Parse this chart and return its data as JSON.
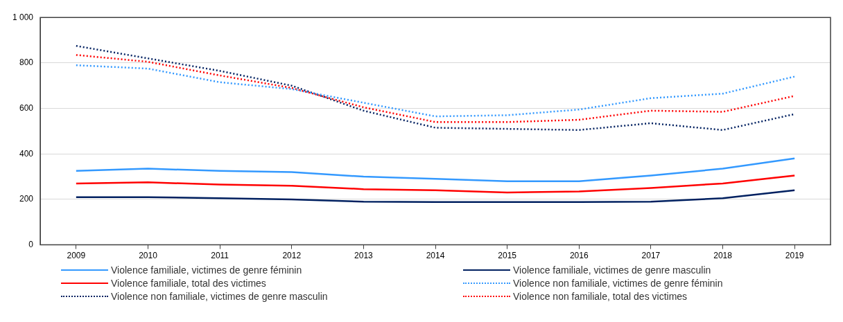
{
  "chart_data": {
    "type": "line",
    "categories": [
      "2009",
      "2010",
      "2011",
      "2012",
      "2013",
      "2014",
      "2015",
      "2016",
      "2017",
      "2018",
      "2019"
    ],
    "series": [
      {
        "name": "Violence familiale, victimes de genre féminin",
        "color": "#3399ff",
        "line_style": "solid",
        "values": [
          325,
          335,
          325,
          320,
          300,
          290,
          280,
          280,
          305,
          335,
          380
        ]
      },
      {
        "name": "Violence familiale, victimes de genre masculin",
        "color": "#002060",
        "line_style": "solid",
        "values": [
          210,
          210,
          205,
          200,
          190,
          188,
          188,
          188,
          190,
          205,
          240
        ]
      },
      {
        "name": "Violence familiale, total des victimes",
        "color": "#ff0000",
        "line_style": "solid",
        "values": [
          270,
          275,
          265,
          260,
          245,
          240,
          230,
          235,
          250,
          270,
          305
        ]
      },
      {
        "name": "Violence non familiale, victimes de genre féminin",
        "color": "#3399ff",
        "line_style": "dotted",
        "values": [
          790,
          775,
          715,
          685,
          625,
          565,
          570,
          595,
          645,
          665,
          740
        ]
      },
      {
        "name": "Violence non familiale, victimes de genre masculin",
        "color": "#002060",
        "line_style": "dotted",
        "values": [
          875,
          820,
          765,
          700,
          590,
          515,
          510,
          505,
          535,
          505,
          575
        ]
      },
      {
        "name": "Violence non familiale, total des victimes",
        "color": "#ff0000",
        "line_style": "dotted",
        "values": [
          835,
          805,
          745,
          690,
          605,
          540,
          540,
          550,
          590,
          585,
          655
        ]
      }
    ],
    "ylim": [
      0,
      1000
    ],
    "yticks": [
      0,
      200,
      400,
      600,
      800,
      {
        "value": 1000,
        "label": "1 000"
      }
    ],
    "grid": "y",
    "legend": "bottom",
    "marker": "none"
  }
}
